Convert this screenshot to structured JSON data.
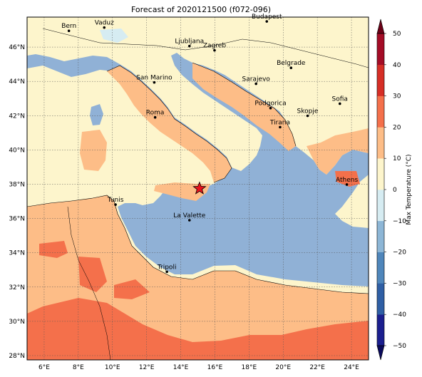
{
  "title": "Forecast of 2020121500 (f072-096)",
  "map": {
    "lon_range": [
      5,
      25
    ],
    "lat_range": [
      27.75,
      47.75
    ],
    "xticks": [
      "6°E",
      "8°E",
      "10°E",
      "12°E",
      "14°E",
      "16°E",
      "18°E",
      "20°E",
      "22°E",
      "24°E"
    ],
    "xtick_values": [
      6,
      8,
      10,
      12,
      14,
      16,
      18,
      20,
      22,
      24
    ],
    "yticks": [
      "28°N",
      "30°N",
      "32°N",
      "34°N",
      "36°N",
      "38°N",
      "40°N",
      "42°N",
      "44°N",
      "46°N"
    ],
    "ytick_values": [
      28,
      30,
      32,
      34,
      36,
      38,
      40,
      42,
      44,
      46
    ],
    "cities": [
      {
        "name": "Bern",
        "lon": 7.45,
        "lat": 46.95
      },
      {
        "name": "Vaduz",
        "lon": 9.52,
        "lat": 47.14
      },
      {
        "name": "Budapest",
        "lon": 19.04,
        "lat": 47.5
      },
      {
        "name": "Ljubljana",
        "lon": 14.51,
        "lat": 46.06
      },
      {
        "name": "Zagreb",
        "lon": 15.98,
        "lat": 45.81
      },
      {
        "name": "Belgrade",
        "lon": 20.46,
        "lat": 44.79
      },
      {
        "name": "San Marino",
        "lon": 12.45,
        "lat": 43.94
      },
      {
        "name": "Sarajevo",
        "lon": 18.41,
        "lat": 43.86
      },
      {
        "name": "Sofia",
        "lon": 23.32,
        "lat": 42.7
      },
      {
        "name": "Podgorica",
        "lon": 19.26,
        "lat": 42.44
      },
      {
        "name": "Skopje",
        "lon": 21.43,
        "lat": 41.99
      },
      {
        "name": "Roma",
        "lon": 12.5,
        "lat": 41.9
      },
      {
        "name": "Tirana",
        "lon": 19.82,
        "lat": 41.33
      },
      {
        "name": "Athens",
        "lon": 23.73,
        "lat": 37.98
      },
      {
        "name": "Tunis",
        "lon": 10.18,
        "lat": 36.81
      },
      {
        "name": "La Valette",
        "lon": 14.51,
        "lat": 35.9
      },
      {
        "name": "Tripoli",
        "lon": 13.19,
        "lat": 32.89
      }
    ],
    "marker": {
      "symbol": "star",
      "lon": 15.1,
      "lat": 37.75,
      "color": "#e8121b"
    }
  },
  "colorbar": {
    "label": "Max Temperature (°C)",
    "ticks": [
      "−50",
      "−40",
      "−30",
      "−20",
      "−10",
      "0",
      "10",
      "20",
      "30",
      "40",
      "50"
    ],
    "colors": {
      "lt_m50": "#0a0a5c",
      "m50_m40": "#1b1f8f",
      "m40_m30": "#2f5fa5",
      "m30_m20": "#4f86bb",
      "m20_m10": "#8db6d6",
      "m10_0": "#d6ecf2",
      "0_10": "#fdf5cc",
      "10_20": "#fdbd87",
      "20_30": "#f4704b",
      "30_40": "#d62e26",
      "40_50": "#a40c26",
      "gt_50": "#6b0016"
    }
  },
  "fields": {
    "sea": "#90b1d6",
    "land_mild": "#fdf5cc",
    "land_warm": "#fdbd87",
    "land_hot": "#f4704b",
    "light_blue": "#d6ecf2"
  }
}
